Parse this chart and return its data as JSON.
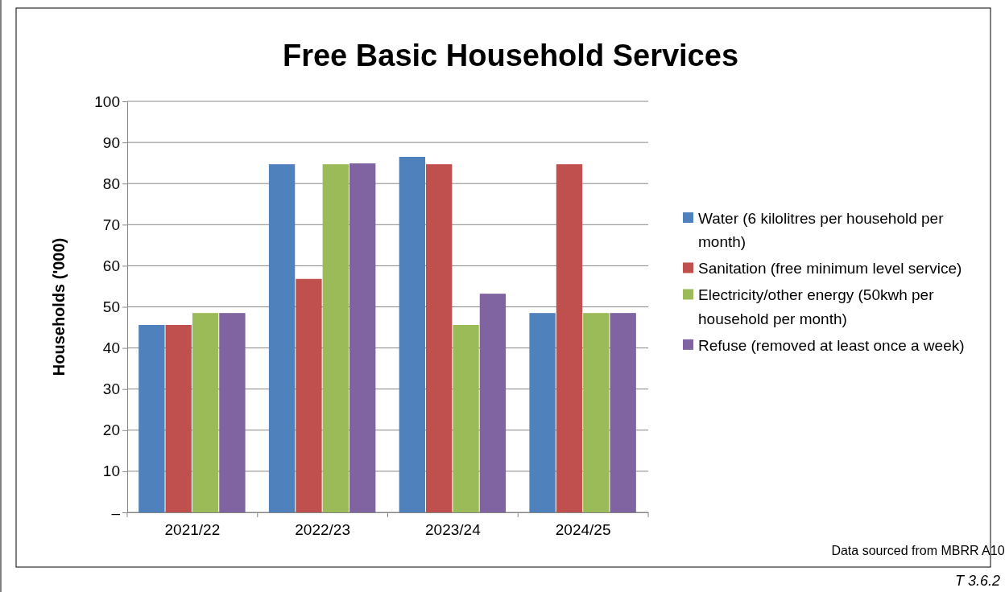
{
  "chart_data": {
    "type": "bar",
    "title": "Free Basic Household Services",
    "ylabel": "Households ('000)",
    "categories": [
      "2021/22",
      "2022/23",
      "2023/24",
      "2024/25"
    ],
    "series": [
      {
        "name": "Water (6 kilolitres per household per month)",
        "color": "#4f81bd",
        "values": [
          45.6,
          84.7,
          86.5,
          48.5
        ]
      },
      {
        "name": "Sanitation (free minimum level service)",
        "color": "#c0504d",
        "values": [
          45.6,
          56.8,
          84.7,
          84.7
        ]
      },
      {
        "name": "Electricity/other energy (50kwh per household per month)",
        "color": "#9bbb59",
        "values": [
          48.5,
          84.7,
          45.6,
          48.5
        ]
      },
      {
        "name": "Refuse (removed at least once a week)",
        "color": "#8064a2",
        "values": [
          48.5,
          84.9,
          53.2,
          48.5
        ]
      }
    ],
    "ylim": [
      0,
      100
    ],
    "yticks": [
      {
        "value": 0,
        "label": "–"
      },
      10,
      20,
      30,
      40,
      50,
      60,
      70,
      80,
      90,
      100
    ],
    "grid": "y",
    "legend": "right",
    "annotations": [
      "Data sourced from MBRR A10",
      "T 3.6.2"
    ]
  }
}
